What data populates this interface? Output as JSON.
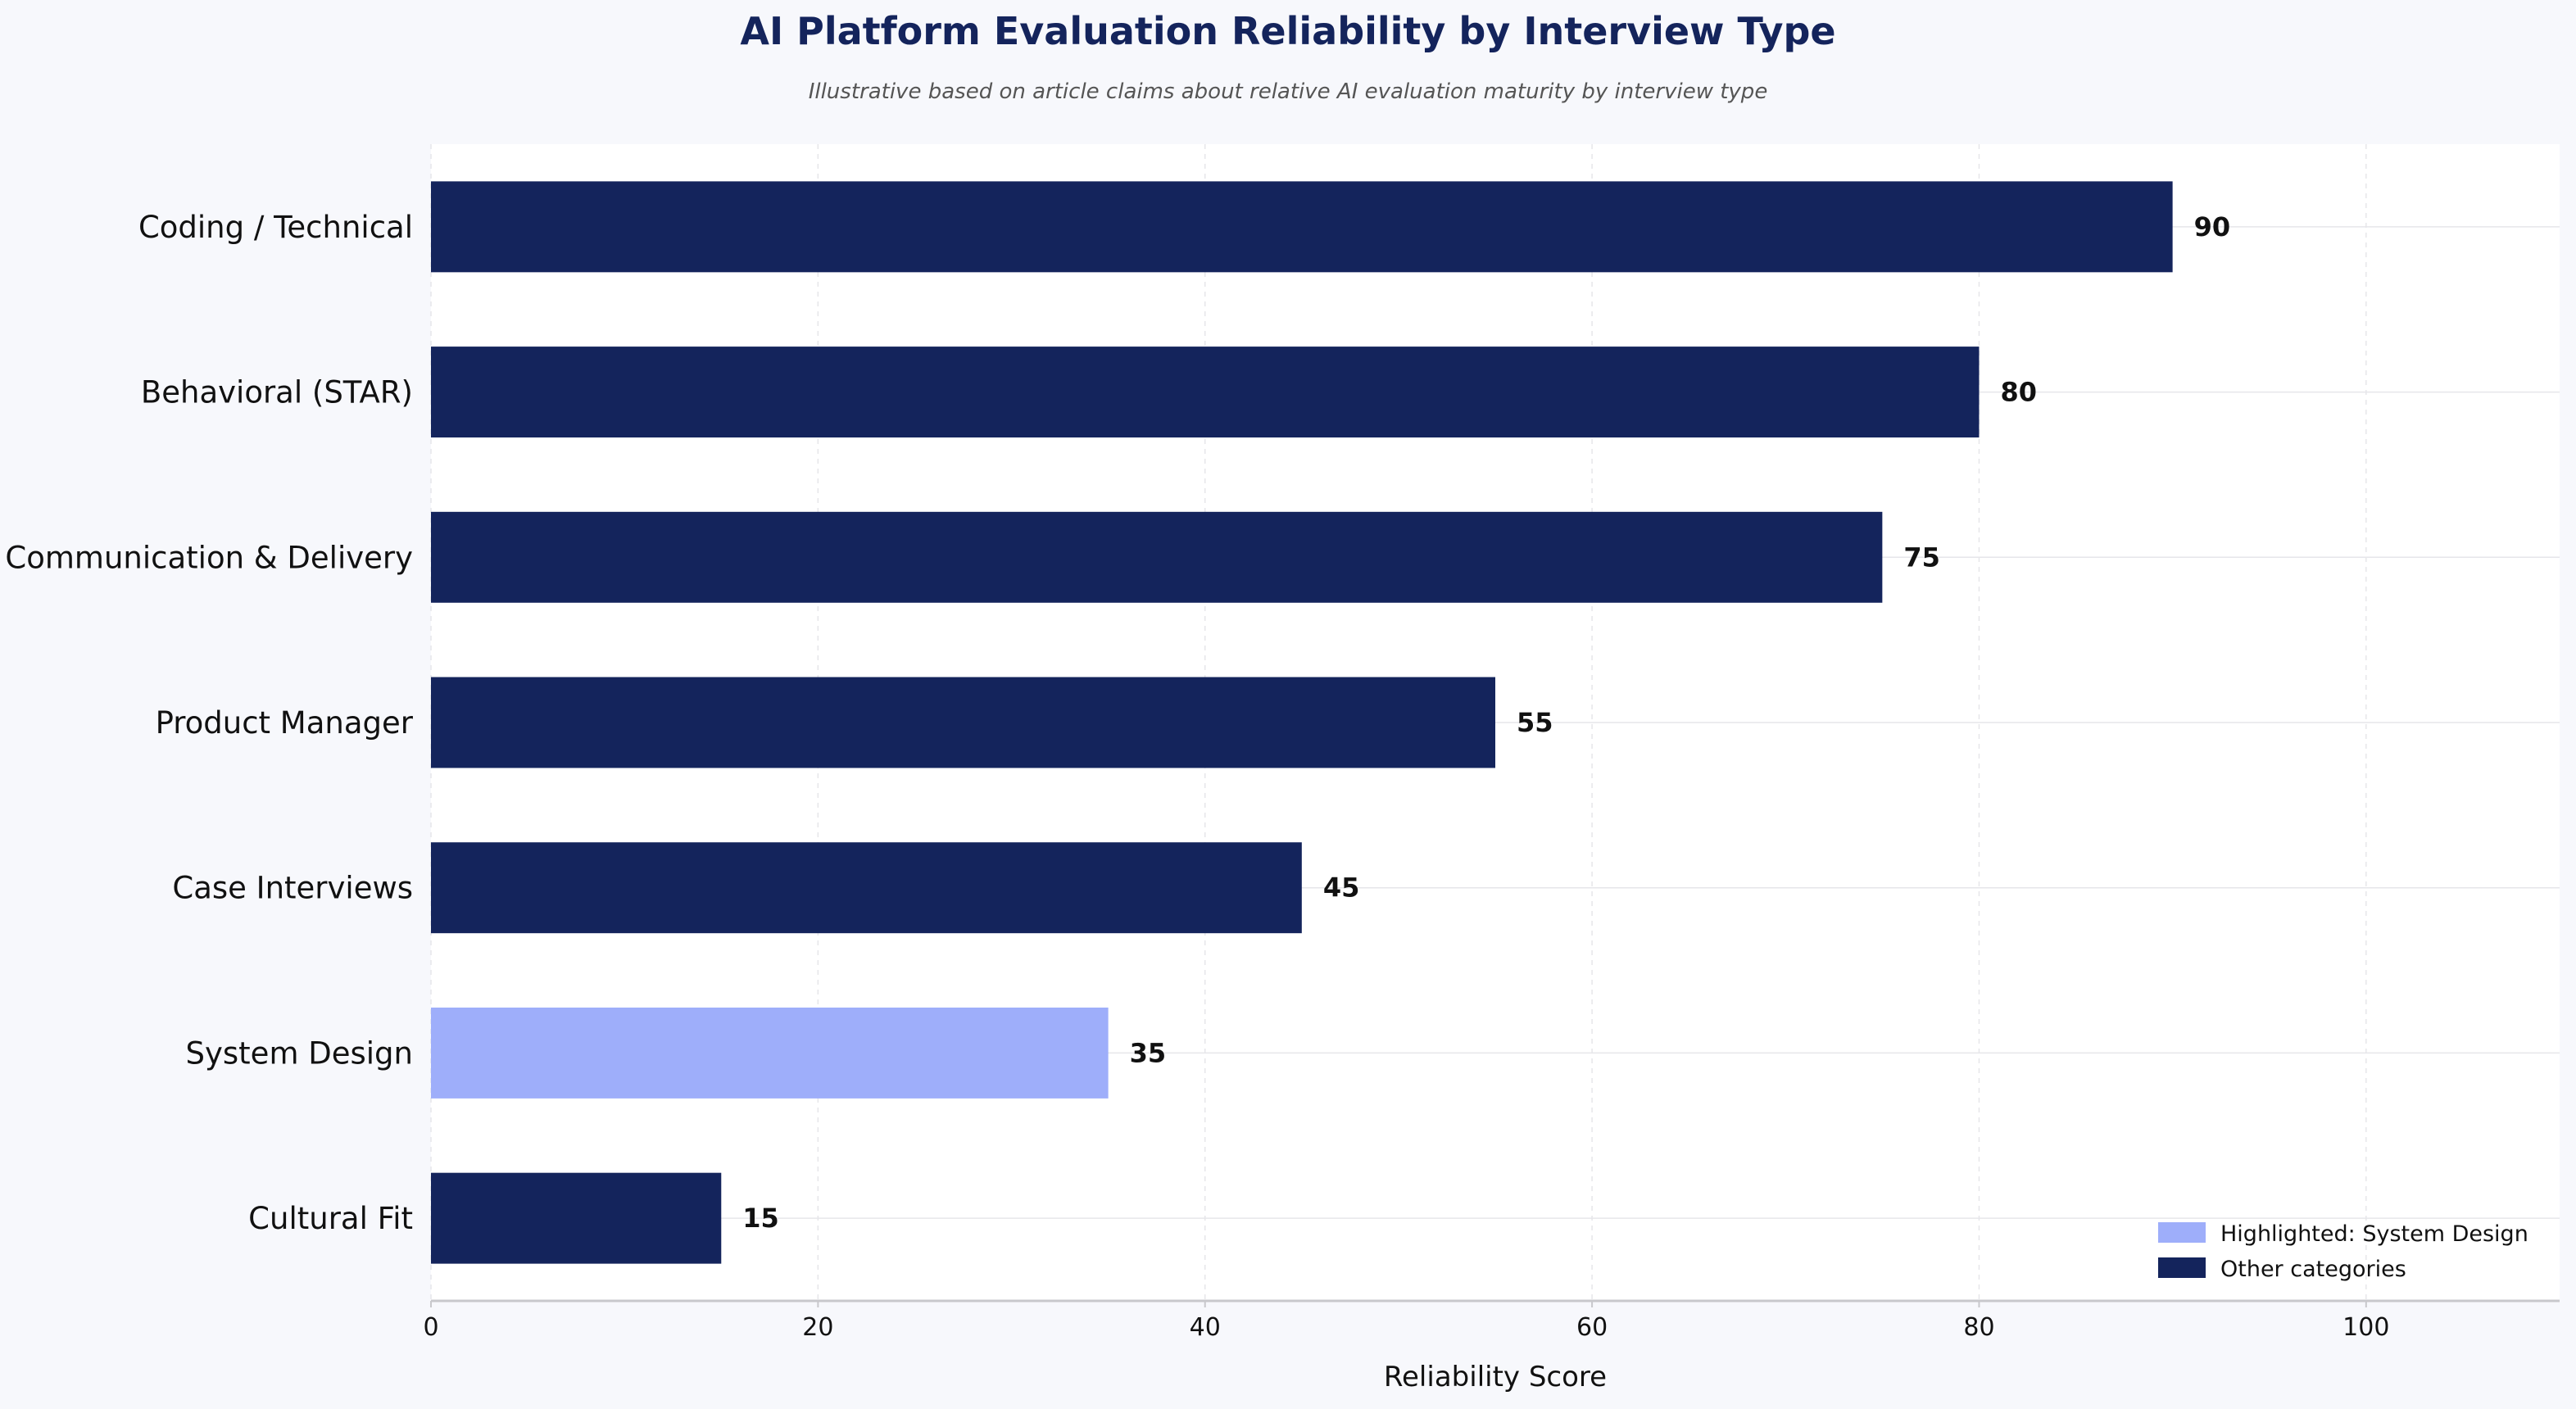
{
  "chart_data": {
    "type": "bar",
    "orientation": "horizontal",
    "title": "AI Platform Evaluation Reliability by Interview Type",
    "subtitle": "Illustrative based on article claims about relative AI evaluation maturity by interview type",
    "xlabel": "Reliability Score",
    "ylabel": "",
    "xlim": [
      0,
      110
    ],
    "xticks": [
      "0",
      "20",
      "40",
      "60",
      "80",
      "100"
    ],
    "grid": true,
    "categories": [
      "Coding / Technical",
      "Behavioral (STAR)",
      "Communication & Delivery",
      "Product Manager",
      "Case Interviews",
      "System Design",
      "Cultural Fit"
    ],
    "values": [
      90,
      80,
      75,
      55,
      45,
      35,
      15
    ],
    "highlighted": "System Design",
    "legend": {
      "placement": "bottom-right",
      "entries": [
        {
          "label": "Highlighted: System Design",
          "color": "#9eaefa"
        },
        {
          "label": "Other categories",
          "color": "#14245c"
        }
      ]
    },
    "colors": {
      "default_bar": "#14245c",
      "highlight_bar": "#9eaefa",
      "title": "#14245c",
      "subtitle": "#555555",
      "text": "#111111",
      "grid": "#e6e6ea",
      "axis": "#c8c8cc",
      "plot_bg": "#ffffff",
      "page_bg": "#f7f8fc"
    }
  }
}
